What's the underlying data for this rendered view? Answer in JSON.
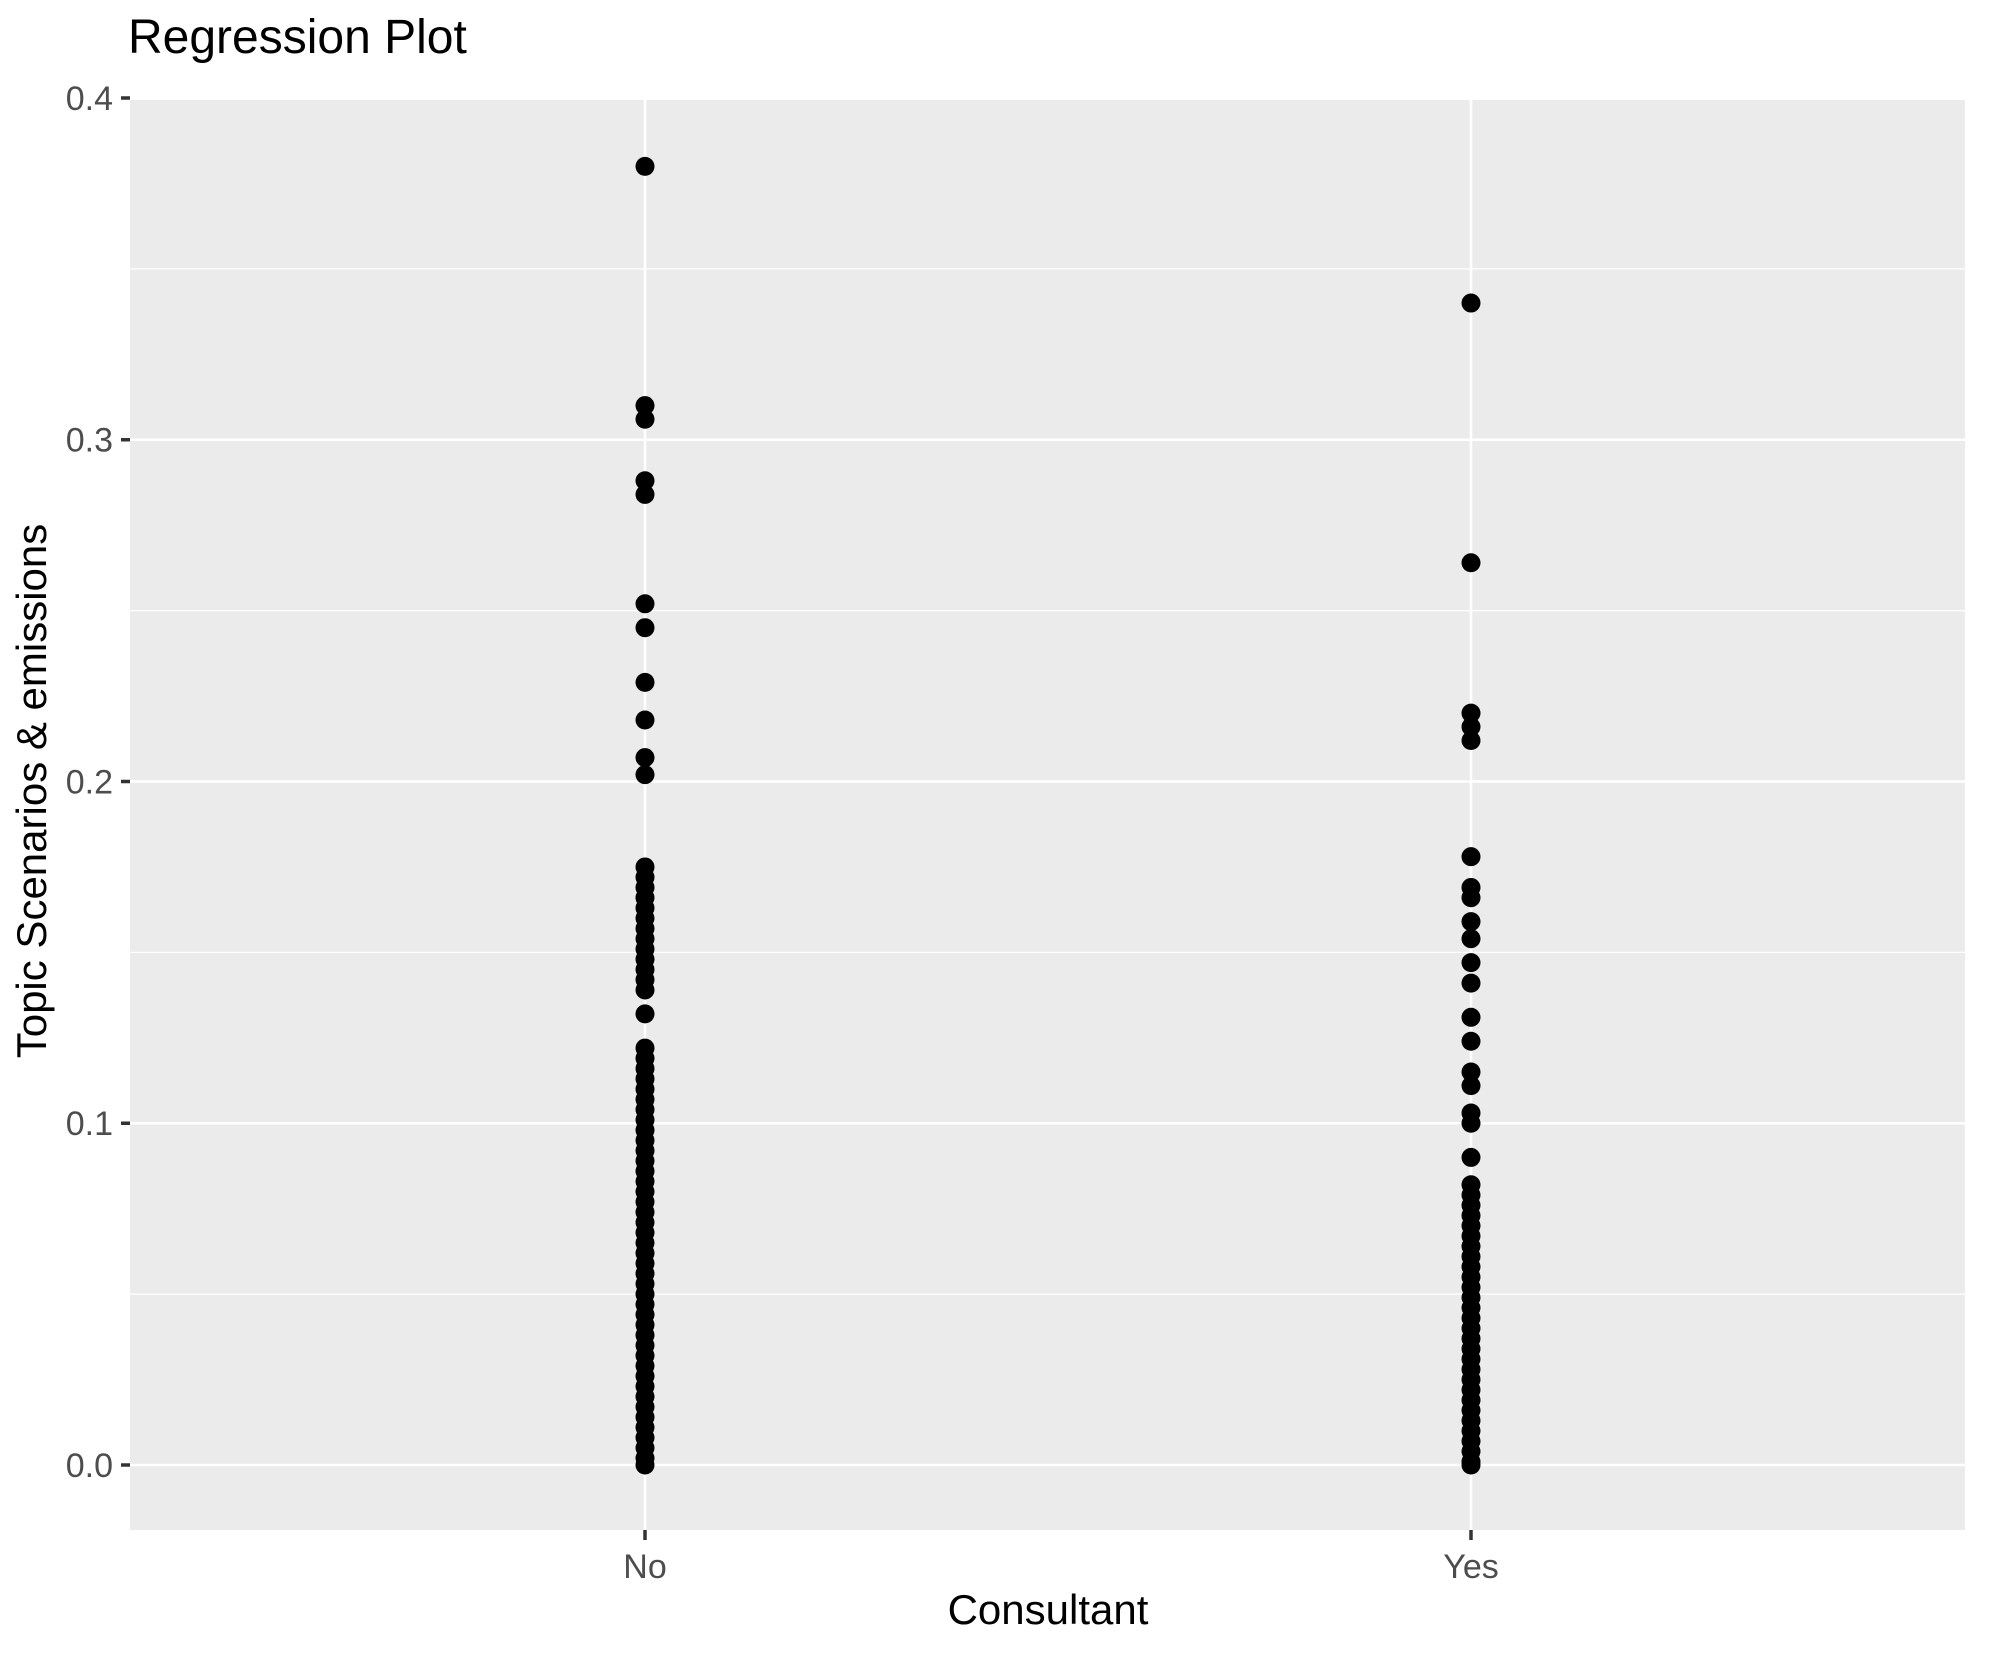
{
  "figure": {
    "title": "Regression Plot",
    "x_axis_title": "Consultant",
    "y_axis_title": "Topic Scenarios & emissions"
  },
  "colors": {
    "panel_background": "#EBEBEB",
    "gridline": "#FFFFFF",
    "point": "#000000",
    "tick_label": "#4D4D4D",
    "tick_mark": "#333333",
    "title_text": "#000000",
    "page_background": "#FFFFFF"
  },
  "chart_data": {
    "type": "scatter",
    "subtype": "strip-plot",
    "title": "Regression Plot",
    "xlabel": "Consultant",
    "ylabel": "Topic Scenarios & emissions",
    "categories": [
      "No",
      "Yes"
    ],
    "y_ticks": [
      0.0,
      0.1,
      0.2,
      0.3,
      0.4
    ],
    "y_tick_labels": [
      "0.0",
      "0.1",
      "0.2",
      "0.3",
      "0.4"
    ],
    "y_minor_ticks": [
      0.05,
      0.15,
      0.25,
      0.35
    ],
    "ylim": [
      -0.019,
      0.4
    ],
    "grid": "major-and-minor-horizontal, major-vertical-at-categories",
    "legend": "none",
    "series": [
      {
        "name": "No",
        "values": [
          0.38,
          0.31,
          0.306,
          0.288,
          0.284,
          0.252,
          0.245,
          0.229,
          0.218,
          0.207,
          0.202,
          0.175,
          0.172,
          0.169,
          0.166,
          0.163,
          0.16,
          0.157,
          0.154,
          0.151,
          0.148,
          0.145,
          0.142,
          0.139,
          0.132,
          0.122,
          0.119,
          0.116,
          0.113,
          0.11,
          0.107,
          0.104,
          0.101,
          0.098,
          0.095,
          0.092,
          0.089,
          0.086,
          0.083,
          0.08,
          0.077,
          0.074,
          0.071,
          0.068,
          0.065,
          0.062,
          0.059,
          0.056,
          0.053,
          0.05,
          0.047,
          0.044,
          0.041,
          0.038,
          0.035,
          0.032,
          0.029,
          0.026,
          0.023,
          0.02,
          0.017,
          0.014,
          0.011,
          0.008,
          0.005,
          0.002,
          0.0
        ]
      },
      {
        "name": "Yes",
        "values": [
          0.34,
          0.264,
          0.22,
          0.216,
          0.212,
          0.178,
          0.169,
          0.166,
          0.159,
          0.154,
          0.147,
          0.141,
          0.131,
          0.124,
          0.115,
          0.111,
          0.103,
          0.1,
          0.09,
          0.082,
          0.079,
          0.076,
          0.073,
          0.07,
          0.067,
          0.064,
          0.061,
          0.058,
          0.055,
          0.052,
          0.049,
          0.046,
          0.043,
          0.04,
          0.037,
          0.034,
          0.031,
          0.028,
          0.025,
          0.022,
          0.019,
          0.016,
          0.013,
          0.01,
          0.007,
          0.004,
          0.001,
          0.0
        ]
      }
    ]
  }
}
